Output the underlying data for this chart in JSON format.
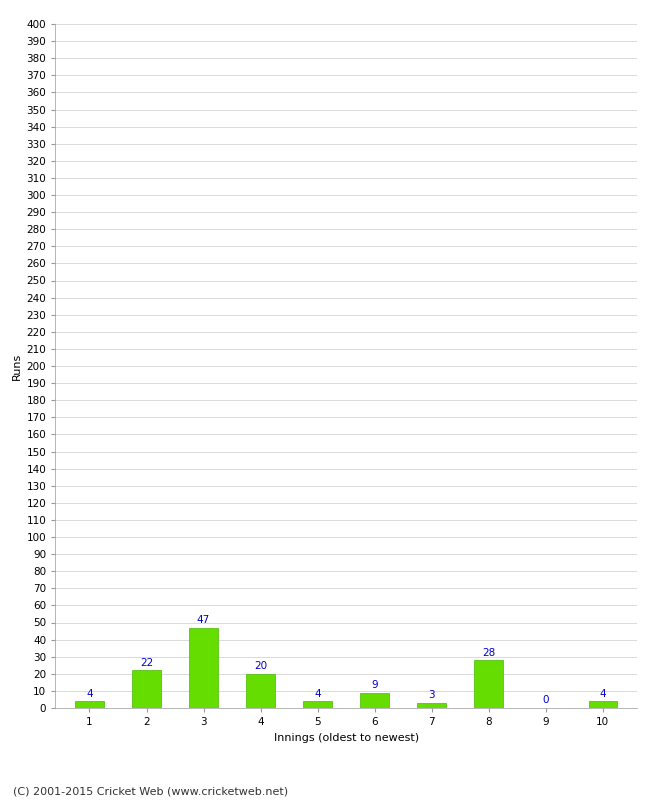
{
  "categories": [
    "1",
    "2",
    "3",
    "4",
    "5",
    "6",
    "7",
    "8",
    "9",
    "10"
  ],
  "values": [
    4,
    22,
    47,
    20,
    4,
    9,
    3,
    28,
    0,
    4
  ],
  "bar_color": "#66dd00",
  "bar_edge_color": "#44bb00",
  "label_color": "#0000cc",
  "ylabel": "Runs",
  "xlabel": "Innings (oldest to newest)",
  "footer": "(C) 2001-2015 Cricket Web (www.cricketweb.net)",
  "ylim_max": 400,
  "ytick_step": 10,
  "background_color": "#ffffff",
  "grid_color": "#cccccc",
  "label_fontsize": 7.5,
  "tick_fontsize": 7.5,
  "axis_label_fontsize": 8,
  "footer_fontsize": 8,
  "bar_width": 0.5
}
